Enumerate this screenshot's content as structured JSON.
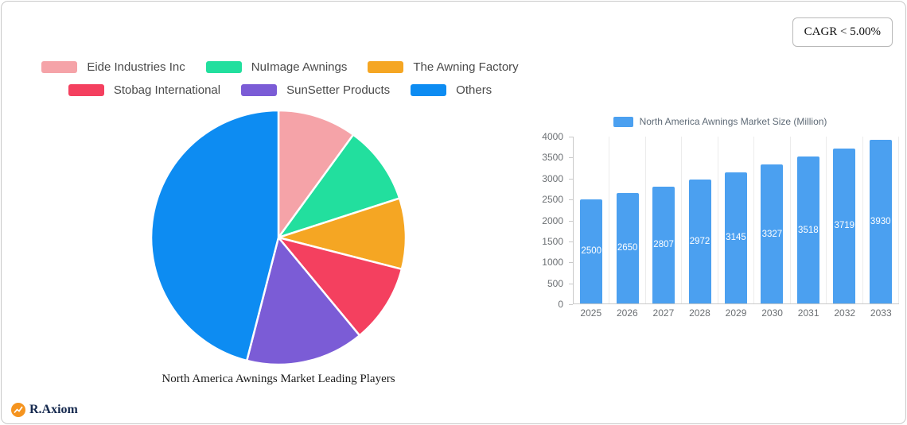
{
  "badge": {
    "label": "CAGR < 5.00%"
  },
  "legend": {
    "items": [
      {
        "label": "Eide Industries Inc",
        "color": "#F5A3A8"
      },
      {
        "label": "NuImage Awnings",
        "color": "#22DF9E"
      },
      {
        "label": "The Awning Factory",
        "color": "#F5A623"
      },
      {
        "label": "Stobag International",
        "color": "#F4405F"
      },
      {
        "label": "SunSetter Products",
        "color": "#7B5CD6"
      },
      {
        "label": "Others",
        "color": "#0D8CF2"
      }
    ]
  },
  "pie_title": "North America Awnings Market Leading Players",
  "bar_legend_label": "North America Awnings Market Size (Million)",
  "logo": {
    "text": "R.Axiom",
    "icon_color": "#F5941F"
  },
  "chart_data": [
    {
      "type": "pie",
      "title": "North America Awnings Market Leading Players",
      "labels": [
        "Eide Industries Inc",
        "NuImage Awnings",
        "The Awning Factory",
        "Stobag International",
        "SunSetter Products",
        "Others"
      ],
      "values": [
        10,
        10,
        9,
        10,
        15,
        46
      ],
      "colors": [
        "#F5A3A8",
        "#22DF9E",
        "#F5A623",
        "#F4405F",
        "#7B5CD6",
        "#0D8CF2"
      ],
      "legend_position": "top",
      "slice_border_color": "#ffffff"
    },
    {
      "type": "bar",
      "title": "North America Awnings Market Size (Million)",
      "categories": [
        "2025",
        "2026",
        "2027",
        "2028",
        "2029",
        "2030",
        "2031",
        "2032",
        "2033"
      ],
      "values": [
        2500,
        2650,
        2807,
        2972,
        3145,
        3327,
        3518,
        3719,
        3930
      ],
      "ylim": [
        0,
        4000
      ],
      "ytick_step": 500,
      "bar_color": "#4BA0F0",
      "grid": "vertical-split-lines",
      "value_labels": "inside-white",
      "legend_position": "top"
    }
  ]
}
